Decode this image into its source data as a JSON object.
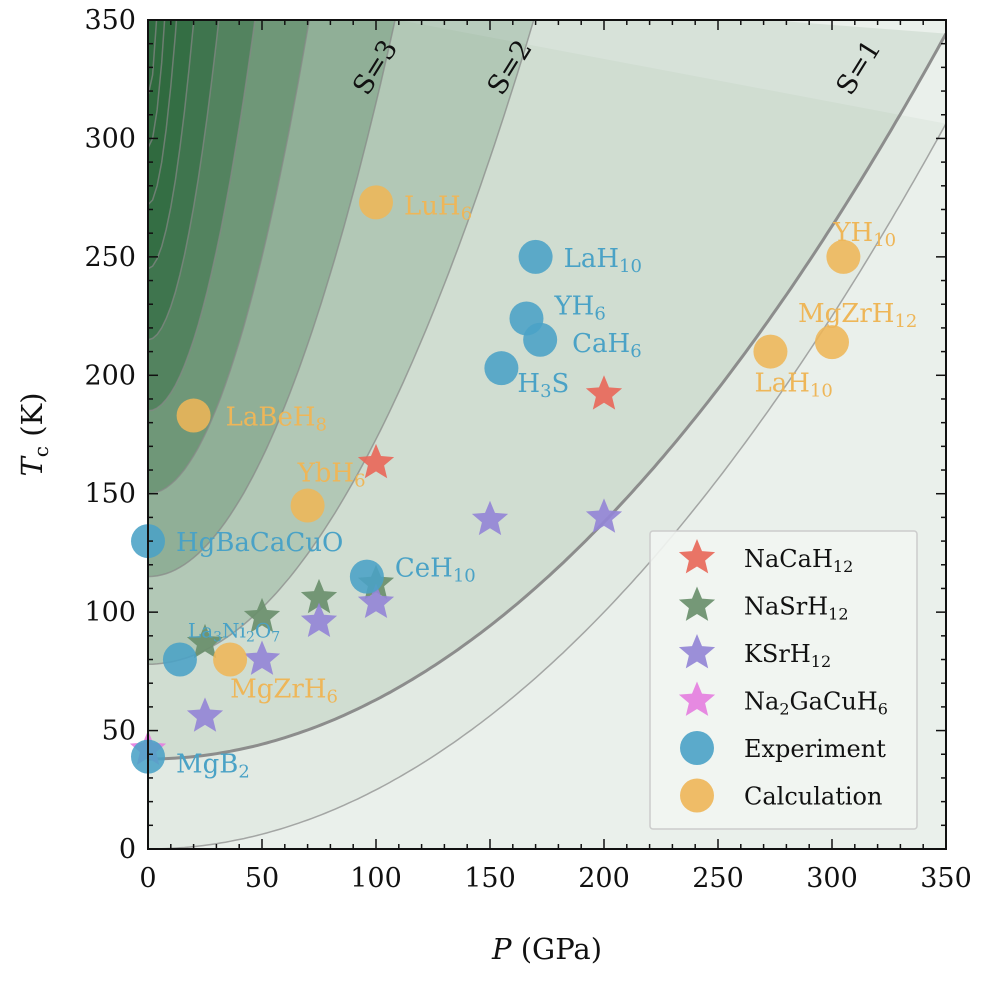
{
  "chart_data": {
    "type": "scatter",
    "title": "",
    "xlabel": {
      "main": "P",
      "unit": " (GPa)"
    },
    "ylabel": {
      "main": "T",
      "sub": "c",
      "unit": " (K)"
    },
    "xlim": [
      0,
      350
    ],
    "ylim": [
      0,
      350
    ],
    "xticks": [
      "0",
      "50",
      "100",
      "150",
      "200",
      "250",
      "300",
      "350"
    ],
    "yticks": [
      "0",
      "50",
      "100",
      "150",
      "200",
      "250",
      "300",
      "350"
    ],
    "background_colors": {
      "light": "#eaf0eb",
      "dark": "#2f6a3f",
      "contour": "#888888"
    },
    "contour_labels": [
      {
        "text": "S=1",
        "x": 315,
        "y": 328
      },
      {
        "text": "S=2",
        "x": 162,
        "y": 328
      },
      {
        "text": "S=3",
        "x": 103,
        "y": 328
      }
    ],
    "series": [
      {
        "name": "NaCaH",
        "sub": "12",
        "marker": "star",
        "color": "#e8685a",
        "points": [
          {
            "x": 100,
            "y": 163
          },
          {
            "x": 200,
            "y": 192
          }
        ]
      },
      {
        "name": "NaSrH",
        "sub": "12",
        "marker": "star",
        "color": "#6a8f6c",
        "points": [
          {
            "x": 25,
            "y": 87
          },
          {
            "x": 50,
            "y": 98
          },
          {
            "x": 75,
            "y": 106
          },
          {
            "x": 100,
            "y": 112
          }
        ]
      },
      {
        "name": "KSrH",
        "sub": "12",
        "marker": "star",
        "color": "#9486d6",
        "points": [
          {
            "x": 25,
            "y": 56
          },
          {
            "x": 50,
            "y": 80
          },
          {
            "x": 75,
            "y": 96
          },
          {
            "x": 100,
            "y": 104
          },
          {
            "x": 150,
            "y": 139
          },
          {
            "x": 200,
            "y": 140
          }
        ]
      },
      {
        "name": "Na",
        "sub": "2",
        "tail": "GaCuH",
        "sub2": "6",
        "marker": "star",
        "color": "#e57fe0",
        "points": [
          {
            "x": 0,
            "y": 42
          }
        ]
      },
      {
        "name": "Experiment",
        "marker": "circle",
        "color": "#4aa2c6",
        "points": [
          {
            "x": 0,
            "y": 39,
            "label": "MgB",
            "sub": "2",
            "lx": 8,
            "ly": 16
          },
          {
            "x": 0,
            "y": 130,
            "label": "HgBaCaCuO",
            "lx": 8,
            "ly": 10
          },
          {
            "x": 14,
            "y": 80,
            "label": "La",
            "sub": "3",
            "tail": "Ni",
            "sub2": "2",
            "tail2": "O",
            "sub3": "7",
            "lx": -12,
            "ly": -22,
            "small": true
          },
          {
            "x": 96,
            "y": 115,
            "label": "CeH",
            "sub": "10",
            "lx": 8,
            "ly": 0
          },
          {
            "x": 155,
            "y": 203,
            "label": "H",
            "sub": "3",
            "tail": "S",
            "lx": -4,
            "ly": 24
          },
          {
            "x": 166,
            "y": 224,
            "label": "YH",
            "sub": "6",
            "lx": 8,
            "ly": -4
          },
          {
            "x": 172,
            "y": 215,
            "label": "CaH",
            "sub": "6",
            "lx": 12,
            "ly": 12
          },
          {
            "x": 170,
            "y": 250,
            "label": "LaH",
            "sub": "10",
            "lx": 8,
            "ly": 10
          }
        ]
      },
      {
        "name": "Calculation",
        "marker": "circle",
        "color": "#eeb658",
        "points": [
          {
            "x": 20,
            "y": 183,
            "label": "LaBeH",
            "sub": "8",
            "lx": 12,
            "ly": 10
          },
          {
            "x": 36,
            "y": 80,
            "label": "MgZrH",
            "sub": "6",
            "lx": -20,
            "ly": 38
          },
          {
            "x": 70,
            "y": 145,
            "label": "YbH",
            "sub": "6",
            "lx": -30,
            "ly": -24
          },
          {
            "x": 100,
            "y": 273,
            "label": "LuH",
            "sub": "6",
            "lx": 8,
            "ly": 12
          },
          {
            "x": 273,
            "y": 210,
            "label": "LaH",
            "sub": "10",
            "lx": -36,
            "ly": 40
          },
          {
            "x": 300,
            "y": 214,
            "label": "MgZrH",
            "sub": "12",
            "lx": -54,
            "ly": -20
          },
          {
            "x": 305,
            "y": 250,
            "label": "YH",
            "sub": "10",
            "lx": -30,
            "ly": -16
          }
        ]
      }
    ],
    "legend": {
      "position": "bottom-right",
      "entries": [
        {
          "name": "NaCaH",
          "sub": "12"
        },
        {
          "name": "NaSrH",
          "sub": "12"
        },
        {
          "name": "KSrH",
          "sub": "12"
        },
        {
          "name": "Na",
          "sub": "2",
          "tail": "GaCuH",
          "sub2": "6"
        },
        {
          "name": "Experiment"
        },
        {
          "name": "Calculation"
        }
      ]
    }
  }
}
